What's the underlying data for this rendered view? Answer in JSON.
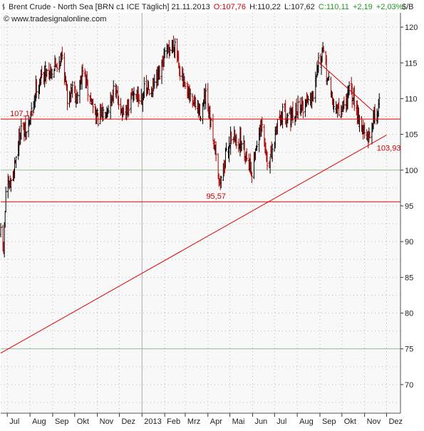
{
  "header": {
    "icon": "ohlc-bars-icon",
    "title": "Brent Crude - North Sea [BRN c1 ICE  Täglich] 21.11.2013",
    "open": "O:107,76",
    "high": "H:110,22",
    "low": "L:107,62",
    "close": "C:110,11",
    "change": "+2,19",
    "change_pct": "+2,03%",
    "watermark": "© www.tradesignalonline.com",
    "unit": "$/B"
  },
  "chart_data": {
    "type": "ohlc",
    "ylim": [
      66,
      122
    ],
    "y_ticks": [
      70,
      75,
      80,
      85,
      90,
      95,
      100,
      105,
      110,
      115,
      120
    ],
    "x_ticks": [
      "Jul",
      "Aug",
      "Sep",
      "Okt",
      "Nov",
      "Dez",
      "2013",
      "Feb",
      "Mrz",
      "Apr",
      "Mai",
      "Jun",
      "Jul",
      "Aug",
      "Sep",
      "Okt",
      "Nov",
      "Dez"
    ],
    "x_tick_dates": [
      "2012-07-01",
      "2012-08-01",
      "2012-09-01",
      "2012-10-01",
      "2012-11-01",
      "2012-12-01",
      "2013-01-01",
      "2013-02-01",
      "2013-03-01",
      "2013-04-01",
      "2013-05-01",
      "2013-06-01",
      "2013-07-01",
      "2013-08-01",
      "2013-09-01",
      "2013-10-01",
      "2013-11-01",
      "2013-12-01"
    ],
    "x_range": [
      "2012-06-22",
      "2013-12-20"
    ],
    "grid": true,
    "colors": {
      "up": "#000000",
      "down": "#aa0000",
      "lines": "#dd0000",
      "grid_minor": "#bbbbbb",
      "grid_major": "#99bb99",
      "background": "#ffffff",
      "plot_bg": "#f8f8f8"
    },
    "price_path": [
      [
        "2012-06-22",
        91
      ],
      [
        "2012-06-26",
        89
      ],
      [
        "2012-06-29",
        97
      ],
      [
        "2012-07-06",
        98
      ],
      [
        "2012-07-13",
        102
      ],
      [
        "2012-07-20",
        106
      ],
      [
        "2012-07-27",
        105
      ],
      [
        "2012-08-03",
        108
      ],
      [
        "2012-08-10",
        112
      ],
      [
        "2012-08-17",
        113
      ],
      [
        "2012-08-24",
        114
      ],
      [
        "2012-08-31",
        114
      ],
      [
        "2012-09-07",
        115
      ],
      [
        "2012-09-14",
        116
      ],
      [
        "2012-09-21",
        110
      ],
      [
        "2012-09-28",
        112
      ],
      [
        "2012-10-05",
        110
      ],
      [
        "2012-10-12",
        114
      ],
      [
        "2012-10-19",
        111
      ],
      [
        "2012-10-26",
        109
      ],
      [
        "2012-11-02",
        107
      ],
      [
        "2012-11-09",
        108
      ],
      [
        "2012-11-16",
        109
      ],
      [
        "2012-11-23",
        111
      ],
      [
        "2012-11-30",
        110
      ],
      [
        "2012-12-07",
        107
      ],
      [
        "2012-12-14",
        109
      ],
      [
        "2012-12-21",
        111
      ],
      [
        "2012-12-28",
        110
      ],
      [
        "2013-01-04",
        111
      ],
      [
        "2013-01-11",
        111
      ],
      [
        "2013-01-18",
        112
      ],
      [
        "2013-01-25",
        113
      ],
      [
        "2013-02-01",
        116
      ],
      [
        "2013-02-08",
        117
      ],
      [
        "2013-02-15",
        118
      ],
      [
        "2013-02-22",
        114
      ],
      [
        "2013-03-01",
        111
      ],
      [
        "2013-03-08",
        110
      ],
      [
        "2013-03-15",
        109
      ],
      [
        "2013-03-22",
        108
      ],
      [
        "2013-03-29",
        110
      ],
      [
        "2013-04-05",
        106
      ],
      [
        "2013-04-12",
        103
      ],
      [
        "2013-04-17",
        98
      ],
      [
        "2013-04-19",
        99
      ],
      [
        "2013-04-26",
        102
      ],
      [
        "2013-05-03",
        105
      ],
      [
        "2013-05-10",
        104
      ],
      [
        "2013-05-17",
        104
      ],
      [
        "2013-05-24",
        102
      ],
      [
        "2013-05-31",
        100
      ],
      [
        "2013-06-07",
        104
      ],
      [
        "2013-06-14",
        106
      ],
      [
        "2013-06-21",
        101
      ],
      [
        "2013-06-28",
        102
      ],
      [
        "2013-07-05",
        107
      ],
      [
        "2013-07-12",
        108
      ],
      [
        "2013-07-19",
        108
      ],
      [
        "2013-07-26",
        107
      ],
      [
        "2013-08-02",
        109
      ],
      [
        "2013-08-09",
        109
      ],
      [
        "2013-08-16",
        110
      ],
      [
        "2013-08-23",
        111
      ],
      [
        "2013-08-28",
        115
      ],
      [
        "2013-09-06",
        116
      ],
      [
        "2013-09-13",
        112
      ],
      [
        "2013-09-20",
        109
      ],
      [
        "2013-09-27",
        108
      ],
      [
        "2013-10-04",
        109
      ],
      [
        "2013-10-11",
        111
      ],
      [
        "2013-10-18",
        110
      ],
      [
        "2013-10-25",
        107
      ],
      [
        "2013-11-01",
        105
      ],
      [
        "2013-11-06",
        104
      ],
      [
        "2013-11-12",
        107
      ],
      [
        "2013-11-15",
        108
      ],
      [
        "2013-11-19",
        108
      ],
      [
        "2013-11-21",
        110.11
      ]
    ],
    "horizontal_lines": [
      {
        "value": 107.14,
        "label": "107,14"
      },
      {
        "value": 95.57,
        "label": "95,57"
      }
    ],
    "trend_lines": [
      {
        "from": [
          "2012-06-22",
          74.4
        ],
        "to": [
          "2013-12-01",
          104.9
        ]
      },
      {
        "from": [
          "2013-08-28",
          115.3
        ],
        "to": [
          "2013-11-12",
          108.3
        ]
      }
    ],
    "annotations": [
      {
        "text": "103,93",
        "date": "2013-11-06",
        "value": 103.93
      }
    ]
  }
}
